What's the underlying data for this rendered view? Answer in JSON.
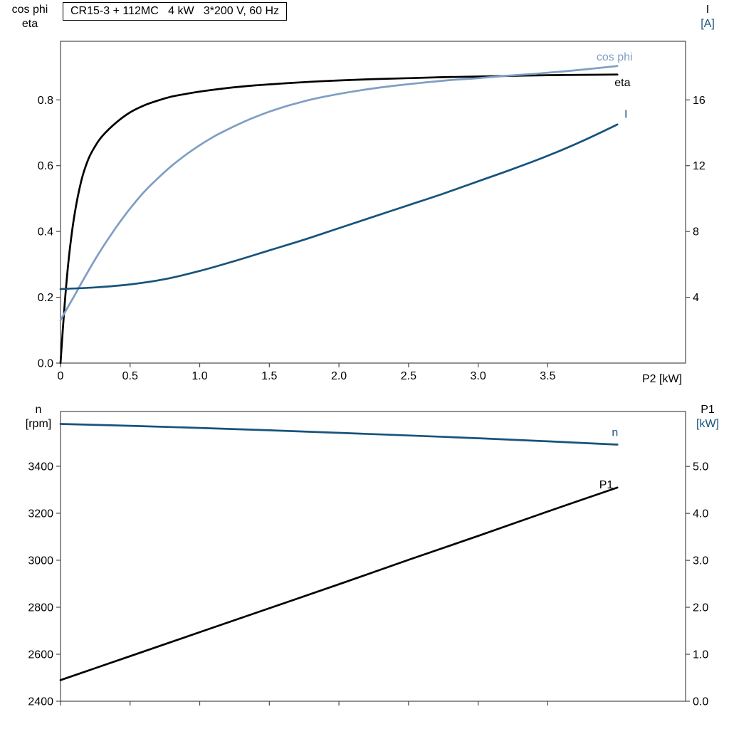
{
  "colors": {
    "black": "#000000",
    "light_blue": "#7f9ec4",
    "dark_blue": "#17537d",
    "axis": "#4a4a4a",
    "background": "#ffffff"
  },
  "chart_data": [
    {
      "id": "motor-top",
      "type": "line",
      "title": "CR15-3 + 112MC   4 kW   3*200 V, 60 Hz",
      "x_axis": {
        "label": "P2 [kW]",
        "range": [
          0,
          4.49
        ],
        "ticks": [
          "0",
          "0.5",
          "1.0",
          "1.5",
          "2.0",
          "2.5",
          "3.0",
          "3.5"
        ],
        "show_tick_labels": true
      },
      "left_axis": {
        "label_lines": [
          "cos phi",
          "eta"
        ],
        "range": [
          0,
          0.978
        ],
        "ticks": [
          "0.0",
          "0.2",
          "0.4",
          "0.6",
          "0.8"
        ]
      },
      "right_axis": {
        "label_lines": [
          "I",
          "[A]"
        ],
        "range": [
          0,
          19.56
        ],
        "ticks": [
          "4",
          "8",
          "12",
          "16"
        ]
      },
      "series": [
        {
          "name": "eta",
          "axis": "left",
          "color": "black",
          "label": "eta",
          "label_pos": [
            3.98,
            0.842
          ],
          "points": [
            [
              0,
              0
            ],
            [
              0.03,
              0.18
            ],
            [
              0.06,
              0.32
            ],
            [
              0.1,
              0.45
            ],
            [
              0.15,
              0.555
            ],
            [
              0.2,
              0.62
            ],
            [
              0.25,
              0.66
            ],
            [
              0.3,
              0.69
            ],
            [
              0.4,
              0.731
            ],
            [
              0.5,
              0.762
            ],
            [
              0.6,
              0.783
            ],
            [
              0.7,
              0.798
            ],
            [
              0.8,
              0.81
            ],
            [
              0.9,
              0.818
            ],
            [
              1,
              0.825
            ],
            [
              1.2,
              0.836
            ],
            [
              1.4,
              0.844
            ],
            [
              1.6,
              0.85
            ],
            [
              1.8,
              0.855
            ],
            [
              2,
              0.859
            ],
            [
              2.25,
              0.863
            ],
            [
              2.5,
              0.866
            ],
            [
              2.75,
              0.869
            ],
            [
              3,
              0.871
            ],
            [
              3.25,
              0.873
            ],
            [
              3.5,
              0.875
            ],
            [
              3.75,
              0.876
            ],
            [
              4,
              0.877
            ]
          ]
        },
        {
          "name": "cos-phi",
          "axis": "left",
          "color": "light_blue",
          "label": "cos phi",
          "label_pos": [
            3.85,
            0.92
          ],
          "points": [
            [
              0,
              0.13
            ],
            [
              0.05,
              0.168
            ],
            [
              0.1,
              0.205
            ],
            [
              0.15,
              0.243
            ],
            [
              0.2,
              0.28
            ],
            [
              0.25,
              0.316
            ],
            [
              0.3,
              0.35
            ],
            [
              0.35,
              0.382
            ],
            [
              0.4,
              0.413
            ],
            [
              0.45,
              0.442
            ],
            [
              0.5,
              0.47
            ],
            [
              0.6,
              0.52
            ],
            [
              0.7,
              0.562
            ],
            [
              0.8,
              0.6
            ],
            [
              0.9,
              0.633
            ],
            [
              1,
              0.662
            ],
            [
              1.1,
              0.688
            ],
            [
              1.2,
              0.71
            ],
            [
              1.3,
              0.73
            ],
            [
              1.4,
              0.748
            ],
            [
              1.5,
              0.764
            ],
            [
              1.6,
              0.778
            ],
            [
              1.7,
              0.79
            ],
            [
              1.8,
              0.801
            ],
            [
              1.9,
              0.81
            ],
            [
              2,
              0.818
            ],
            [
              2.2,
              0.832
            ],
            [
              2.4,
              0.843
            ],
            [
              2.6,
              0.852
            ],
            [
              2.8,
              0.86
            ],
            [
              3,
              0.866
            ],
            [
              3.2,
              0.873
            ],
            [
              3.4,
              0.879
            ],
            [
              3.6,
              0.886
            ],
            [
              3.8,
              0.894
            ],
            [
              4,
              0.903
            ]
          ]
        },
        {
          "name": "current",
          "axis": "right",
          "color": "dark_blue",
          "label": "I",
          "label_pos": [
            4.05,
            14.9
          ],
          "points": [
            [
              0,
              4.5
            ],
            [
              0.25,
              4.6
            ],
            [
              0.5,
              4.78
            ],
            [
              0.75,
              5.1
            ],
            [
              1,
              5.6
            ],
            [
              1.25,
              6.2
            ],
            [
              1.5,
              6.85
            ],
            [
              1.75,
              7.5
            ],
            [
              2,
              8.2
            ],
            [
              2.25,
              8.9
            ],
            [
              2.5,
              9.6
            ],
            [
              2.75,
              10.3
            ],
            [
              3,
              11.05
            ],
            [
              3.25,
              11.8
            ],
            [
              3.5,
              12.6
            ],
            [
              3.75,
              13.5
            ],
            [
              4,
              14.5
            ]
          ]
        }
      ]
    },
    {
      "id": "motor-bottom",
      "type": "line",
      "title": "",
      "x_axis": {
        "label": "",
        "range": [
          0,
          4.49
        ],
        "ticks": [
          "0",
          "0.5",
          "1.0",
          "1.5",
          "2.0",
          "2.5",
          "3.0",
          "3.5"
        ],
        "show_tick_labels": false
      },
      "left_axis": {
        "label_lines": [
          "n",
          "[rpm]"
        ],
        "range": [
          2400,
          3633
        ],
        "ticks": [
          "2400",
          "2600",
          "2800",
          "3000",
          "3200",
          "3400"
        ]
      },
      "right_axis": {
        "label_lines": [
          "P1",
          "[kW]"
        ],
        "range": [
          0,
          6.17
        ],
        "ticks": [
          "0.0",
          "1.0",
          "2.0",
          "3.0",
          "4.0",
          "5.0"
        ]
      },
      "series": [
        {
          "name": "speed",
          "axis": "left",
          "color": "dark_blue",
          "label": "n",
          "label_pos": [
            3.96,
            3528
          ],
          "points": [
            [
              0,
              3580
            ],
            [
              0.5,
              3572
            ],
            [
              1,
              3563
            ],
            [
              1.5,
              3553
            ],
            [
              2,
              3542
            ],
            [
              2.5,
              3531
            ],
            [
              3,
              3519
            ],
            [
              3.5,
              3506
            ],
            [
              4,
              3492
            ]
          ]
        },
        {
          "name": "p1",
          "axis": "right",
          "color": "black",
          "label": "P1",
          "label_pos": [
            3.87,
            4.53
          ],
          "points": [
            [
              0,
              0.45
            ],
            [
              0.5,
              0.96
            ],
            [
              1,
              1.47
            ],
            [
              1.5,
              1.98
            ],
            [
              2,
              2.49
            ],
            [
              2.5,
              3.01
            ],
            [
              3,
              3.52
            ],
            [
              3.5,
              4.04
            ],
            [
              4,
              4.55
            ]
          ]
        }
      ]
    }
  ]
}
